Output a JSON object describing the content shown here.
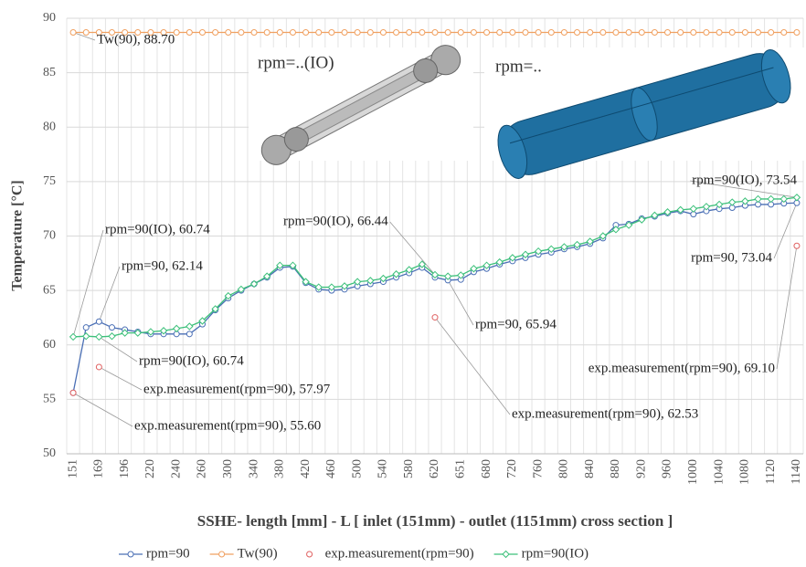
{
  "chart_data": {
    "type": "line",
    "y_axis_title": "Temperature [°C]",
    "x_axis_title": "SSHE- length [mm] - L [ inlet (151mm) - outlet (1151mm) cross section ]",
    "insets": [
      "rpm=..(IO)",
      "rpm=.."
    ],
    "categories": [
      "151",
      null,
      "169",
      null,
      "196",
      null,
      "220",
      null,
      "240",
      null,
      "260",
      null,
      "300",
      null,
      "340",
      null,
      "380",
      null,
      "420",
      null,
      "460",
      null,
      "500",
      null,
      "540",
      null,
      "580",
      null,
      "620",
      null,
      "651",
      null,
      "680",
      null,
      "720",
      null,
      "760",
      null,
      "800",
      null,
      "840",
      null,
      "880",
      null,
      "920",
      null,
      "960",
      null,
      "1000",
      null,
      "1040",
      null,
      "1080",
      null,
      "1120",
      null,
      "1140"
    ],
    "ylim": [
      50,
      90
    ],
    "yticks": [
      50,
      55,
      60,
      65,
      70,
      75,
      80,
      85,
      90
    ],
    "grid": true,
    "legend": "bottom",
    "series": [
      {
        "name": "rpm=90",
        "color": "#4a6fb5",
        "marker": "circle",
        "line": true,
        "values": [
          55.6,
          61.6,
          62.14,
          61.6,
          61.4,
          61.2,
          61.0,
          61.0,
          61.0,
          61.0,
          61.9,
          63.2,
          64.3,
          65.0,
          65.6,
          66.2,
          67.1,
          67.2,
          65.7,
          65.1,
          65.0,
          65.1,
          65.4,
          65.6,
          65.8,
          66.2,
          66.6,
          67.1,
          66.2,
          65.94,
          66.0,
          66.7,
          67.0,
          67.4,
          67.7,
          68.0,
          68.3,
          68.5,
          68.8,
          69.0,
          69.3,
          69.8,
          71.0,
          71.1,
          71.6,
          71.8,
          72.1,
          72.3,
          72.0,
          72.3,
          72.5,
          72.6,
          72.8,
          72.9,
          72.9,
          73.0,
          73.04
        ]
      },
      {
        "name": "Tw(90)",
        "color": "#f0a060",
        "marker": "circle",
        "line": true,
        "values": [
          88.7,
          88.7,
          88.7,
          88.7,
          88.7,
          88.7,
          88.7,
          88.7,
          88.7,
          88.7,
          88.7,
          88.7,
          88.7,
          88.7,
          88.7,
          88.7,
          88.7,
          88.7,
          88.7,
          88.7,
          88.7,
          88.7,
          88.7,
          88.7,
          88.7,
          88.7,
          88.7,
          88.7,
          88.7,
          88.7,
          88.7,
          88.7,
          88.7,
          88.7,
          88.7,
          88.7,
          88.7,
          88.7,
          88.7,
          88.7,
          88.7,
          88.7,
          88.7,
          88.7,
          88.7,
          88.7,
          88.7,
          88.7,
          88.7,
          88.7,
          88.7,
          88.7,
          88.7,
          88.7,
          88.7,
          88.7,
          88.7
        ]
      },
      {
        "name": "exp.measurement(rpm=90)",
        "color": "#e06060",
        "marker": "circle",
        "line": false,
        "values": [
          55.6,
          null,
          57.97,
          null,
          null,
          null,
          null,
          null,
          null,
          null,
          null,
          null,
          null,
          null,
          null,
          null,
          null,
          null,
          null,
          null,
          null,
          null,
          null,
          null,
          null,
          null,
          null,
          null,
          62.53,
          null,
          null,
          null,
          null,
          null,
          null,
          null,
          null,
          null,
          null,
          null,
          null,
          null,
          null,
          null,
          null,
          null,
          null,
          null,
          null,
          null,
          null,
          null,
          null,
          null,
          null,
          null,
          69.1
        ]
      },
      {
        "name": "rpm=90(IO)",
        "color": "#3cc07a",
        "marker": "diamond",
        "line": true,
        "values": [
          60.74,
          60.8,
          60.74,
          60.8,
          61.1,
          61.1,
          61.2,
          61.3,
          61.5,
          61.7,
          62.2,
          63.3,
          64.5,
          65.1,
          65.6,
          66.3,
          67.3,
          67.3,
          65.8,
          65.3,
          65.3,
          65.4,
          65.8,
          65.9,
          66.1,
          66.5,
          66.9,
          67.4,
          66.44,
          66.3,
          66.4,
          67.0,
          67.3,
          67.6,
          68.0,
          68.3,
          68.6,
          68.8,
          69.0,
          69.2,
          69.5,
          70.0,
          70.6,
          71.0,
          71.5,
          71.9,
          72.2,
          72.4,
          72.5,
          72.7,
          72.9,
          73.1,
          73.2,
          73.4,
          73.4,
          73.4,
          73.54
        ]
      }
    ],
    "annotations": [
      "Tw(90), 88.70",
      "rpm=90(IO), 60.74",
      "rpm=90, 62.14",
      "rpm=90(IO), 66.44",
      "rpm=90(IO), 73.54",
      "rpm=90, 73.04",
      "rpm=90(IO), 60.74",
      "exp.measurement(rpm=90), 57.97",
      "exp.measurement(rpm=90), 55.60",
      "rpm=90, 65.94",
      "exp.measurement(rpm=90), 62.53",
      "exp.measurement(rpm=90), 69.10"
    ]
  }
}
